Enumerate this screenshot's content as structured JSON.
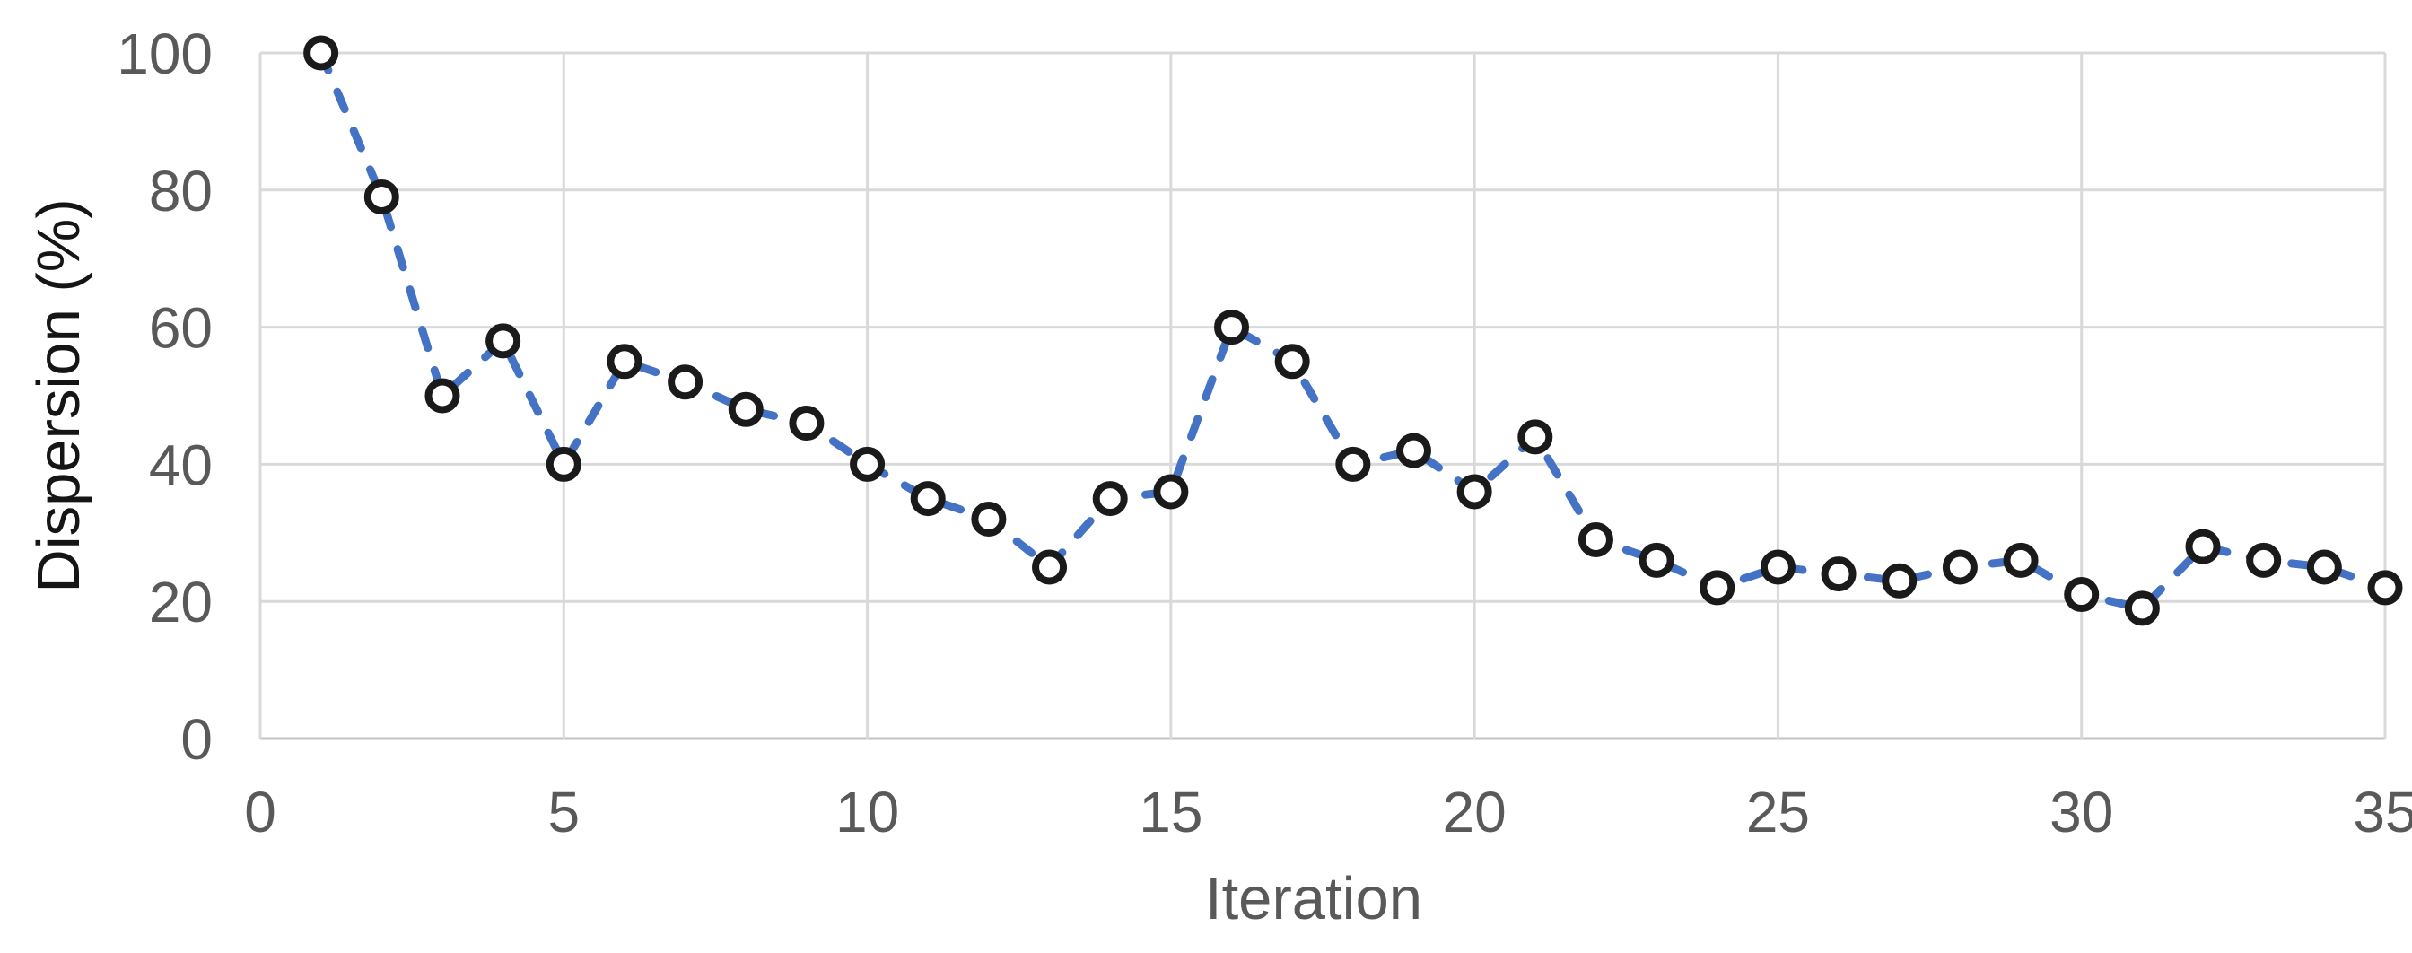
{
  "chart_data": {
    "type": "line",
    "title": "",
    "xlabel": "Iteration",
    "ylabel": "Dispersion (%)",
    "x": [
      1,
      2,
      3,
      4,
      5,
      6,
      7,
      8,
      9,
      10,
      11,
      12,
      13,
      14,
      15,
      16,
      17,
      18,
      19,
      20,
      21,
      22,
      23,
      24,
      25,
      26,
      27,
      28,
      29,
      30,
      31,
      32,
      33,
      34,
      35
    ],
    "series": [
      {
        "name": "Dispersion",
        "values": [
          100,
          79,
          50,
          58,
          40,
          55,
          52,
          48,
          46,
          40,
          35,
          32,
          25,
          35,
          36,
          60,
          55,
          40,
          42,
          36,
          44,
          29,
          26,
          22,
          25,
          24,
          23,
          25,
          26,
          21,
          19,
          28,
          26,
          25,
          22
        ]
      }
    ],
    "x_ticks": [
      0,
      5,
      10,
      15,
      20,
      25,
      30,
      35
    ],
    "y_ticks": [
      0,
      20,
      40,
      60,
      80,
      100
    ],
    "xlim": [
      0,
      35
    ],
    "ylim": [
      0,
      100
    ],
    "grid": true,
    "legend_position": "none",
    "line_style": "dashed",
    "marker": "open-circle",
    "colors": {
      "line": "#4472C4",
      "marker_stroke": "#1a1a1a",
      "marker_fill": "#ffffff",
      "gridline": "#d9d9d9",
      "axis_line": "#c3c3c3",
      "tick_label": "#595959",
      "x_title": "#595959",
      "y_title": "#151515",
      "background": "#ffffff"
    }
  }
}
